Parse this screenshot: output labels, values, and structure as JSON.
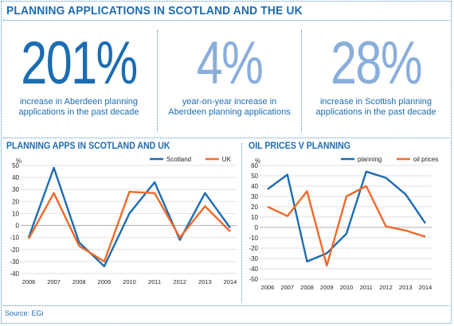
{
  "title": "PLANNING APPLICATIONS IN SCOTLAND AND THE UK",
  "stats": [
    {
      "value": "201%",
      "caption": [
        "increase in Aberdeen planning",
        "applications in the past decade"
      ],
      "color": "#1c6cb2"
    },
    {
      "value": "4%",
      "caption": [
        "year-on-year increase in",
        "Aberdeen planning applications"
      ],
      "color": "#8aaedb"
    },
    {
      "value": "28%",
      "caption": [
        "increase in Scottish planning",
        "applications in the past decade"
      ],
      "color": "#8aaedb"
    }
  ],
  "source": "Source: EGi",
  "chart_data": [
    {
      "type": "line",
      "title": "PLANNING APPS IN SCOTLAND AND UK",
      "ylabel": "%",
      "categories": [
        "2006",
        "2007",
        "2008",
        "2009",
        "2010",
        "2011",
        "2012",
        "2013",
        "2014"
      ],
      "ylim": [
        -40,
        50
      ],
      "yticks": [
        50,
        40,
        30,
        20,
        10,
        0,
        -10,
        -20,
        -30,
        -40
      ],
      "grid": true,
      "legend": "top-right",
      "series": [
        {
          "name": "Scotland",
          "color": "#1c6cb2",
          "values": [
            -10,
            48,
            -14,
            -34,
            10,
            36,
            -12,
            27,
            -2
          ]
        },
        {
          "name": "UK",
          "color": "#ef6a2a",
          "values": [
            -11,
            27,
            -17,
            -30,
            28,
            27,
            -10,
            16,
            -5
          ]
        }
      ]
    },
    {
      "type": "line",
      "title": "OIL PRICES V PLANNING",
      "ylabel": "%",
      "categories": [
        "2006",
        "2007",
        "2008",
        "2009",
        "2010",
        "2011",
        "2012",
        "2013",
        "2014"
      ],
      "ylim": [
        -50,
        60
      ],
      "yticks": [
        60,
        50,
        40,
        30,
        20,
        10,
        0,
        -10,
        -20,
        -30,
        -40,
        -50
      ],
      "grid": true,
      "legend": "top-right",
      "series": [
        {
          "name": "planning",
          "color": "#1c6cb2",
          "values": [
            37,
            51,
            -33,
            -25,
            -6,
            54,
            48,
            32,
            4
          ]
        },
        {
          "name": "oil prices",
          "color": "#ef6a2a",
          "values": [
            20,
            11,
            35,
            -37,
            30,
            40,
            1,
            -3,
            -9
          ]
        }
      ]
    }
  ]
}
